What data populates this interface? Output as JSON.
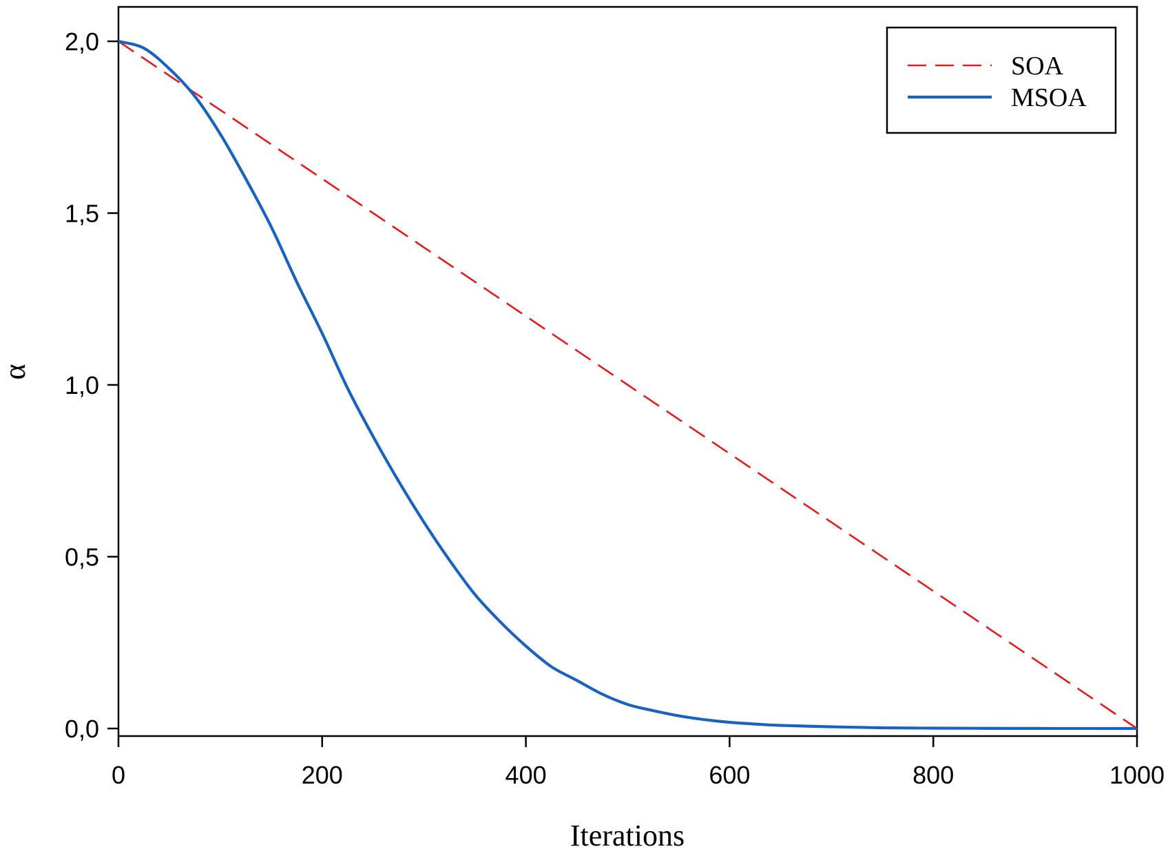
{
  "chart_data": {
    "type": "line",
    "title": "",
    "xlabel": "Iterations",
    "ylabel": "α",
    "xlim": [
      0,
      1000
    ],
    "ylim": [
      0,
      2
    ],
    "x_ticks": [
      0,
      200,
      400,
      600,
      800,
      1000
    ],
    "x_tick_labels": [
      "0",
      "200",
      "400",
      "600",
      "800",
      "1000"
    ],
    "y_ticks": [
      0,
      0.5,
      1,
      1.5,
      2
    ],
    "y_tick_labels": [
      "0,0",
      "0,5",
      "1,0",
      "1,5",
      "2,0"
    ],
    "grid": false,
    "legend_position": "top-right",
    "series": [
      {
        "name": "SOA",
        "style": "dashed",
        "color": "#e41a1c",
        "x": [
          0,
          100,
          200,
          300,
          400,
          500,
          600,
          700,
          800,
          900,
          1000
        ],
        "values": [
          2.0,
          1.8,
          1.6,
          1.4,
          1.2,
          1.0,
          0.8,
          0.6,
          0.4,
          0.2,
          0.0
        ]
      },
      {
        "name": "MSOA",
        "style": "solid",
        "color": "#1a62bf",
        "x": [
          0,
          25,
          50,
          75,
          100,
          125,
          150,
          175,
          200,
          225,
          250,
          275,
          300,
          325,
          350,
          375,
          400,
          425,
          450,
          475,
          500,
          525,
          550,
          575,
          600,
          625,
          650,
          700,
          750,
          800,
          850,
          900,
          950,
          1000
        ],
        "values": [
          2.0,
          1.98,
          1.92,
          1.84,
          1.73,
          1.6,
          1.46,
          1.3,
          1.15,
          0.99,
          0.85,
          0.72,
          0.6,
          0.49,
          0.39,
          0.31,
          0.24,
          0.18,
          0.14,
          0.1,
          0.07,
          0.052,
          0.037,
          0.026,
          0.018,
          0.013,
          0.009,
          0.005,
          0.002,
          0.001,
          0.0005,
          0.0002,
          0.0001,
          0.0
        ]
      }
    ]
  }
}
